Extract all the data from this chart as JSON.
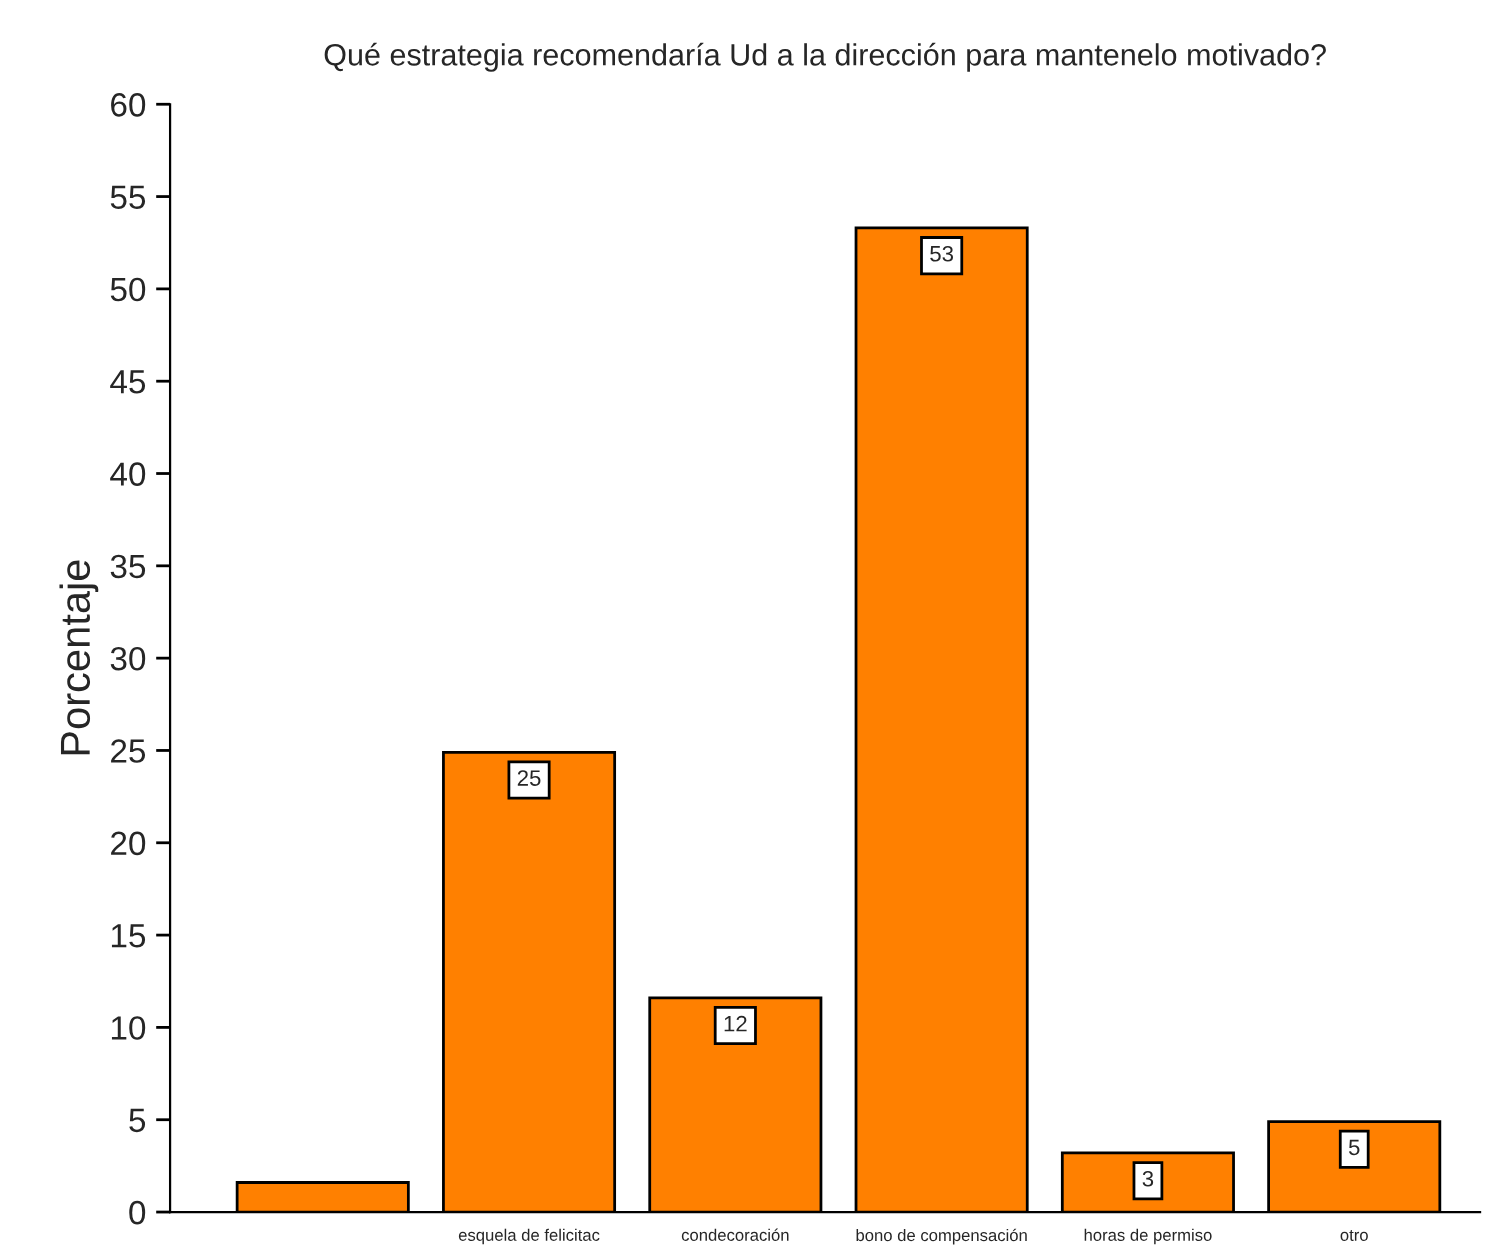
{
  "chart_data": {
    "type": "bar",
    "title": "Qué estrategia recomendaría Ud a la dirección para mantenelo motivado?",
    "ylabel": "Porcentaje",
    "categories": [
      null,
      "esquela de felicitac",
      "condecoración",
      "bono de compensación",
      "horas de permiso",
      "otro"
    ],
    "values": [
      1.6,
      24.9,
      11.6,
      53.3,
      3.2,
      4.9
    ],
    "value_labels": [
      null,
      "25",
      "12",
      "53",
      "3",
      "5"
    ],
    "color": "#ff8000",
    "ylim": [
      0,
      60
    ],
    "yticks": [
      0,
      5,
      10,
      15,
      20,
      25,
      30,
      35,
      40,
      45,
      50,
      55,
      60
    ],
    "grid": false,
    "legend": false
  }
}
